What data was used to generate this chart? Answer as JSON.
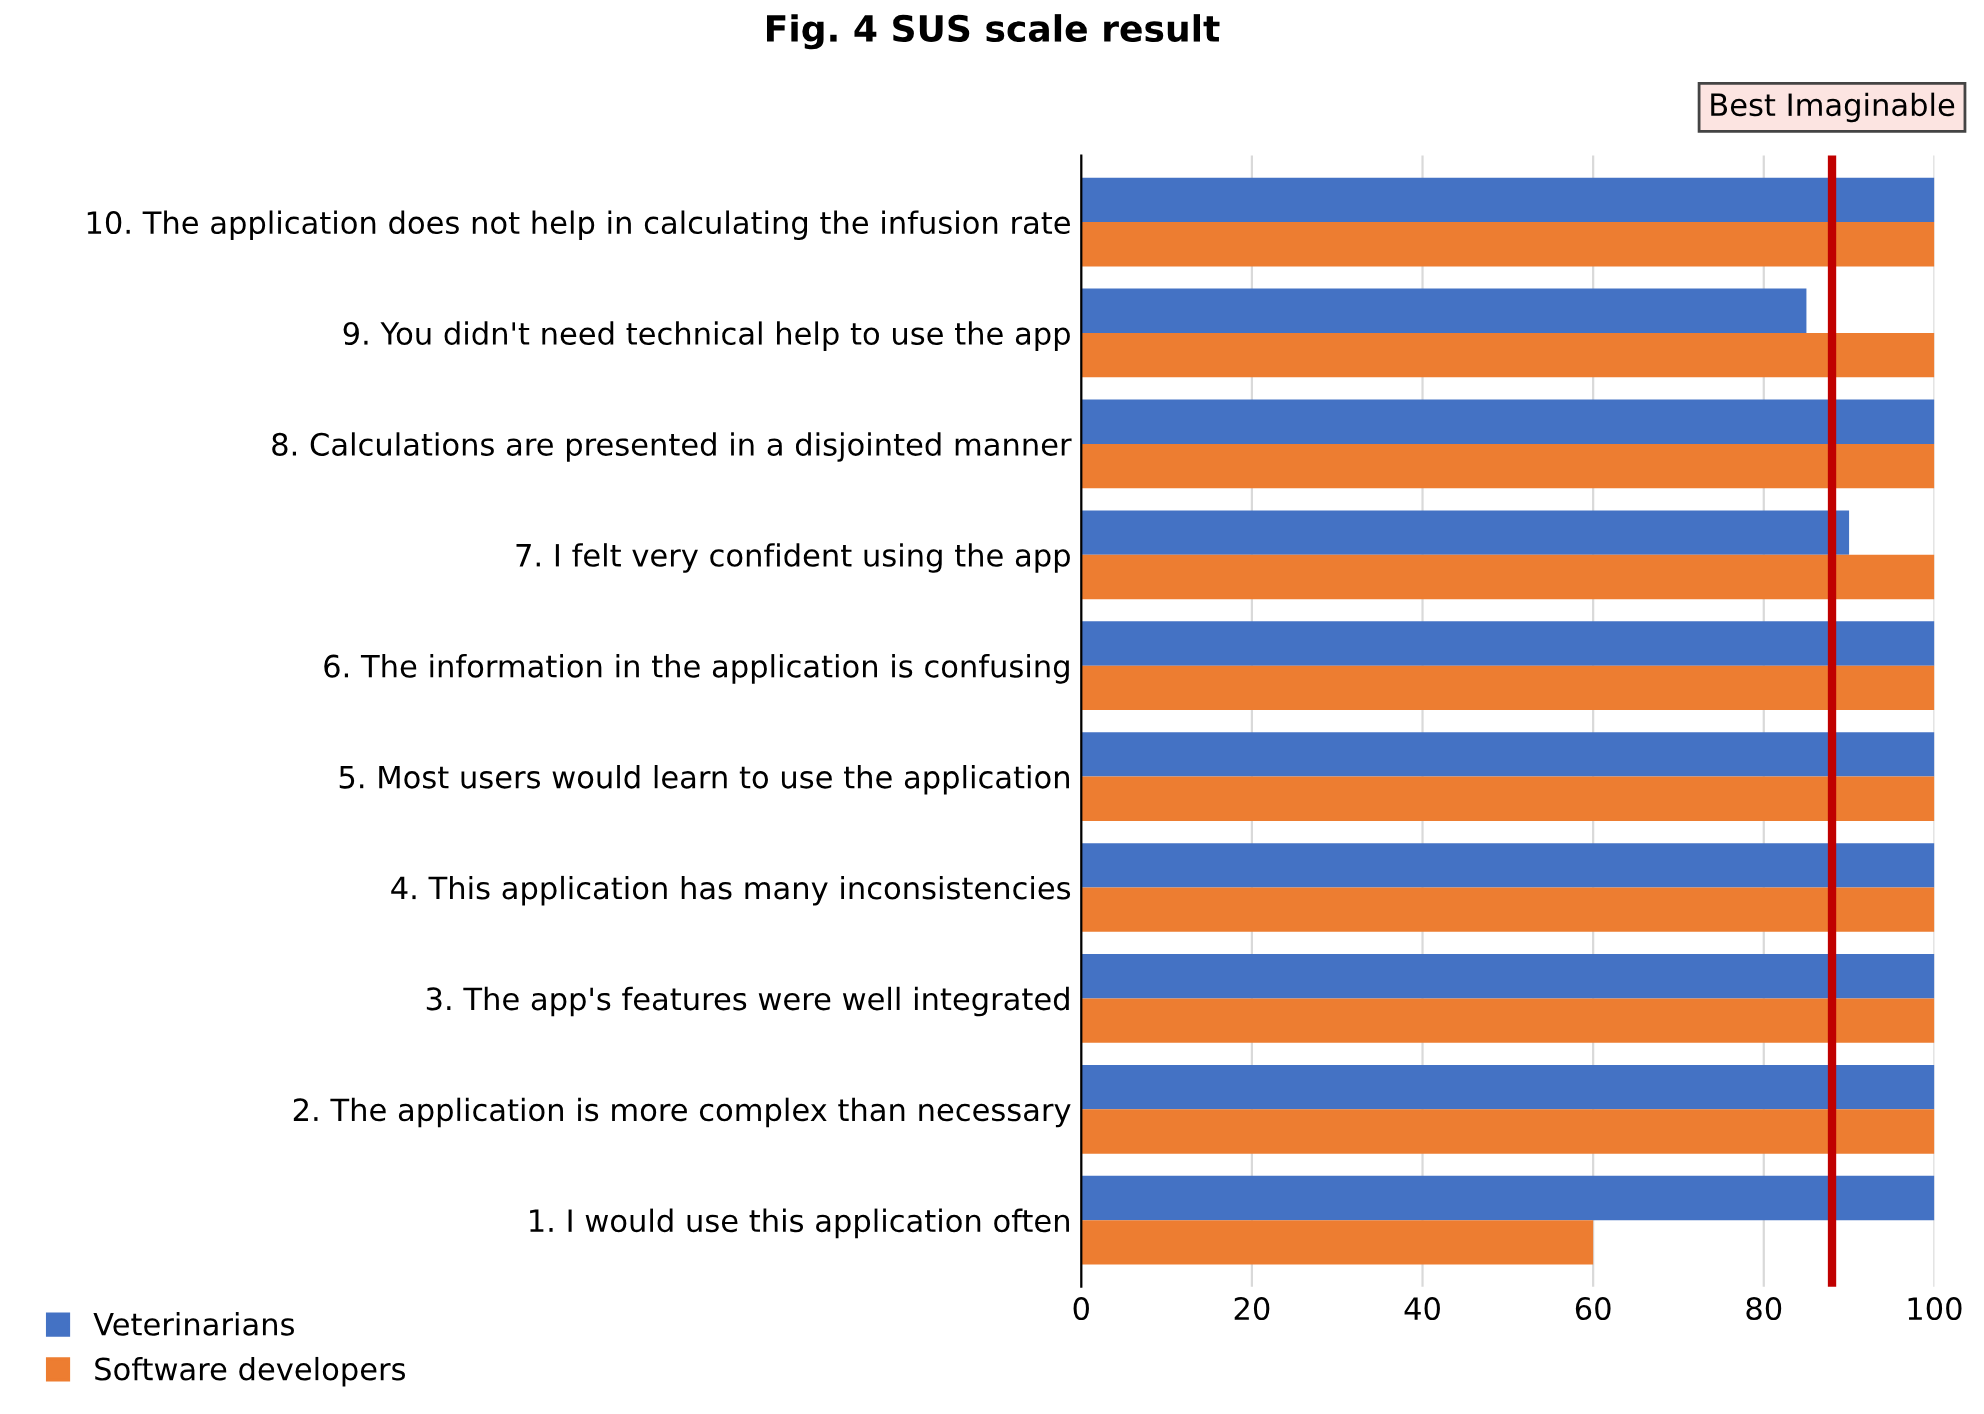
{
  "chart_data": {
    "type": "bar",
    "orientation": "horizontal",
    "title": "Fig. 4 SUS scale result",
    "categories": [
      "10. The application does not help in calculating the infusion rate",
      "9. You didn't need technical help to use the app",
      "8. Calculations are presented in a disjointed manner",
      "7. I felt very confident using the app",
      "6. The information in the application is confusing",
      "5. Most users would learn to use the application",
      "4. This application has many inconsistencies",
      "3. The app's features were well integrated",
      "2. The application is more complex than necessary",
      "1. I would use this application often"
    ],
    "series": [
      {
        "name": "Veterinarians",
        "color": "#4472c4",
        "values": [
          100,
          85,
          100,
          90,
          100,
          100,
          100,
          100,
          100,
          100
        ]
      },
      {
        "name": "Software developers",
        "color": "#ed7d31",
        "values": [
          100,
          100,
          100,
          100,
          100,
          100,
          100,
          100,
          100,
          60
        ]
      }
    ],
    "xlim": [
      0,
      100
    ],
    "xticks": [
      0,
      20,
      40,
      60,
      80,
      100
    ],
    "grid": "x",
    "legend": "bottom left",
    "ref_lines": [
      {
        "axis": "x",
        "value": 88,
        "label": "Best Imaginable",
        "color": "#c00000"
      }
    ]
  }
}
